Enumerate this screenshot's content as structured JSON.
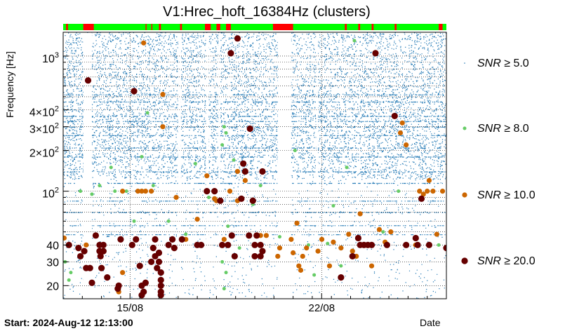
{
  "chart_data": {
    "type": "scatter",
    "title": "V1:Hrec_hoft_16384Hz (clusters)",
    "ylabel": "Frequency [Hz]",
    "xlabel": "Date",
    "start_label": "Start: 2024-Aug-12 12:13:00",
    "y_scale": "log",
    "ylim": [
      16,
      1500
    ],
    "xlim_days": [
      0,
      20
    ],
    "x_ticks": [
      {
        "label": "15/08",
        "day": 3.49
      },
      {
        "label": "22/08",
        "day": 13.49
      }
    ],
    "y_ticks": [
      {
        "label": "20",
        "value": 20
      },
      {
        "label": "30",
        "value": 30
      },
      {
        "label": "40",
        "value": 40
      },
      {
        "label": "10^2",
        "value": 100,
        "base": "10",
        "exp": "2"
      },
      {
        "label": "2×10^2",
        "value": 200,
        "base": "2×10",
        "exp": "2"
      },
      {
        "label": "3×10^2",
        "value": 300,
        "base": "3×10",
        "exp": "2"
      },
      {
        "label": "4×10^2",
        "value": 400,
        "base": "4×10",
        "exp": "2"
      },
      {
        "label": "10^3",
        "value": 1000,
        "base": "10",
        "exp": "3"
      }
    ],
    "grid": true,
    "legend_position": "right",
    "colors": {
      "snr5": "#1f77b4",
      "snr8": "#66cc66",
      "snr10": "#cc6600",
      "snr20": "#660000",
      "segment_on": "#00ff00",
      "segment_off": "#ff0000"
    },
    "series": [
      {
        "name": "SNR ≥ 5.0",
        "label": "SNR",
        "sym": "≥ 5.0",
        "key": "snr5"
      },
      {
        "name": "SNR ≥ 8.0",
        "label": "SNR",
        "sym": "≥ 8.0",
        "key": "snr8"
      },
      {
        "name": "SNR ≥ 10.0",
        "label": "SNR",
        "sym": "≥ 10.0",
        "key": "snr10"
      },
      {
        "name": "SNR ≥ 20.0",
        "label": "SNR",
        "sym": "≥ 20.0",
        "key": "snr20"
      }
    ],
    "segments_off_days": [
      [
        0.15,
        0.25
      ],
      [
        1.05,
        1.6
      ],
      [
        4.3,
        4.35
      ],
      [
        4.6,
        4.65
      ],
      [
        5.0,
        5.1
      ],
      [
        6.1,
        6.2
      ],
      [
        7.4,
        7.7
      ],
      [
        8.0,
        8.2
      ],
      [
        8.5,
        8.75
      ],
      [
        10.95,
        12.0
      ],
      [
        14.7,
        14.8
      ],
      [
        15.4,
        15.5
      ],
      [
        16.1,
        16.2
      ],
      [
        17.3,
        17.4
      ],
      [
        19.6,
        19.8
      ]
    ],
    "data_gaps_days": [
      [
        1.05,
        1.5
      ],
      [
        11.2,
        11.9
      ],
      [
        6.0,
        6.15
      ],
      [
        7.45,
        7.6
      ],
      [
        8.1,
        8.2
      ],
      [
        13.2,
        13.3
      ]
    ],
    "snr20_points": [
      [
        0.3,
        40
      ],
      [
        0.8,
        38
      ],
      [
        0.9,
        33
      ],
      [
        1.1,
        36
      ],
      [
        1.5,
        21
      ],
      [
        1.7,
        47
      ],
      [
        1.9,
        40
      ],
      [
        1.9,
        36
      ],
      [
        1.95,
        33
      ],
      [
        2.1,
        40
      ],
      [
        2.1,
        36
      ],
      [
        1.2,
        27
      ],
      [
        1.4,
        27
      ],
      [
        2.0,
        27
      ],
      [
        2.3,
        23
      ],
      [
        2.9,
        20
      ],
      [
        2.85,
        19
      ],
      [
        3.0,
        44
      ],
      [
        1.3,
        660
      ],
      [
        3.7,
        550
      ],
      [
        3.6,
        40
      ],
      [
        3.8,
        44
      ],
      [
        4.1,
        20
      ],
      [
        4.2,
        18
      ],
      [
        4.3,
        21
      ],
      [
        4.1,
        17
      ],
      [
        4.6,
        30
      ],
      [
        4.8,
        44
      ],
      [
        4.7,
        38
      ],
      [
        4.8,
        33
      ],
      [
        5.1,
        25
      ],
      [
        5.1,
        22
      ],
      [
        5.1,
        20
      ],
      [
        5.1,
        18
      ],
      [
        5.1,
        17
      ],
      [
        5.0,
        30
      ],
      [
        5.0,
        35
      ],
      [
        4.9,
        27
      ],
      [
        5.5,
        40
      ],
      [
        5.7,
        44
      ],
      [
        5.8,
        38
      ],
      [
        6.2,
        44
      ],
      [
        7.0,
        40
      ],
      [
        7.2,
        40
      ],
      [
        7.5,
        100
      ],
      [
        7.9,
        100
      ],
      [
        8.2,
        85
      ],
      [
        8.3,
        40
      ],
      [
        8.6,
        40
      ],
      [
        8.8,
        47
      ],
      [
        8.95,
        33
      ],
      [
        9.3,
        88
      ],
      [
        8.75,
        1050
      ],
      [
        9.4,
        160
      ],
      [
        9.5,
        140
      ],
      [
        9.75,
        290
      ],
      [
        9.9,
        85
      ],
      [
        10.1,
        47
      ],
      [
        10.4,
        36
      ],
      [
        10.3,
        33
      ],
      [
        10.3,
        40
      ],
      [
        9.7,
        47
      ],
      [
        10.0,
        33
      ],
      [
        10.4,
        140
      ],
      [
        10.0,
        40
      ],
      [
        15.5,
        40
      ],
      [
        15.7,
        40
      ],
      [
        15.9,
        40
      ],
      [
        16.1,
        40
      ],
      [
        15.1,
        33
      ],
      [
        15.4,
        45
      ],
      [
        14.5,
        23
      ],
      [
        16.9,
        40
      ],
      [
        17.3,
        360
      ],
      [
        17.9,
        40
      ],
      [
        19.1,
        40
      ],
      [
        18.5,
        40
      ],
      [
        18.4,
        45
      ],
      [
        18.7,
        88
      ],
      [
        16.3,
        1050
      ],
      [
        20.0,
        38
      ],
      [
        4.0,
        28
      ],
      [
        9.1,
        1350
      ]
    ],
    "snr10_points": [
      [
        0.05,
        45
      ],
      [
        1.2,
        40
      ],
      [
        2.9,
        18
      ],
      [
        3.1,
        25
      ],
      [
        3.1,
        100
      ],
      [
        3.9,
        100
      ],
      [
        4.1,
        100
      ],
      [
        4.3,
        100
      ],
      [
        4.2,
        1250
      ],
      [
        5.2,
        520
      ],
      [
        4.6,
        100
      ],
      [
        5.2,
        300
      ],
      [
        5.9,
        90
      ],
      [
        6.4,
        44
      ],
      [
        7.0,
        62
      ],
      [
        7.5,
        130
      ],
      [
        7.9,
        88
      ],
      [
        8.4,
        44
      ],
      [
        8.7,
        100
      ],
      [
        8.0,
        85
      ],
      [
        9.1,
        140
      ],
      [
        9.5,
        120
      ],
      [
        9.1,
        85
      ],
      [
        10.3,
        47
      ],
      [
        10.6,
        47
      ],
      [
        11.2,
        33
      ],
      [
        11.3,
        38
      ],
      [
        11.9,
        44
      ],
      [
        12.0,
        35
      ],
      [
        12.3,
        28
      ],
      [
        12.4,
        26
      ],
      [
        12.5,
        33
      ],
      [
        12.7,
        38
      ],
      [
        13.3,
        36
      ],
      [
        13.5,
        44
      ],
      [
        13.9,
        28
      ],
      [
        14.1,
        42
      ],
      [
        14.5,
        38
      ],
      [
        14.9,
        48
      ],
      [
        15.1,
        36
      ],
      [
        15.3,
        33
      ],
      [
        15.5,
        68
      ],
      [
        16.1,
        28
      ],
      [
        16.5,
        52
      ],
      [
        16.8,
        42
      ],
      [
        17.1,
        50
      ],
      [
        17.6,
        270
      ],
      [
        17.9,
        220
      ],
      [
        18.4,
        40
      ],
      [
        18.6,
        100
      ],
      [
        18.8,
        95
      ],
      [
        19.0,
        100
      ],
      [
        19.1,
        120
      ],
      [
        19.3,
        100
      ],
      [
        19.5,
        48
      ],
      [
        17.7,
        320
      ],
      [
        19.8,
        100
      ],
      [
        12.2,
        58
      ]
    ],
    "snr8_points": [
      [
        0.1,
        30
      ],
      [
        0.3,
        22
      ],
      [
        0.4,
        25
      ],
      [
        0.9,
        100
      ],
      [
        1.5,
        95
      ],
      [
        1.9,
        110
      ],
      [
        2.5,
        150
      ],
      [
        2.7,
        100
      ],
      [
        3.3,
        100
      ],
      [
        3.7,
        60
      ],
      [
        4.1,
        180
      ],
      [
        4.4,
        380
      ],
      [
        4.7,
        110
      ],
      [
        5.5,
        60
      ],
      [
        6.4,
        48
      ],
      [
        6.9,
        160
      ],
      [
        7.6,
        90
      ],
      [
        8.4,
        300
      ],
      [
        8.5,
        270
      ],
      [
        8.3,
        220
      ],
      [
        8.3,
        30
      ],
      [
        8.5,
        25
      ],
      [
        8.4,
        19
      ],
      [
        8.9,
        170
      ],
      [
        8.6,
        55
      ],
      [
        9.2,
        38
      ],
      [
        9.9,
        80
      ],
      [
        10.3,
        110
      ],
      [
        11.3,
        46
      ],
      [
        12.1,
        200
      ],
      [
        12.8,
        40
      ],
      [
        13.8,
        41
      ],
      [
        14.1,
        78
      ],
      [
        14.8,
        150
      ],
      [
        15.2,
        1300
      ],
      [
        16.7,
        50
      ],
      [
        17.5,
        100
      ],
      [
        19.6,
        40
      ],
      [
        14.5,
        28
      ],
      [
        13.1,
        24
      ]
    ]
  }
}
